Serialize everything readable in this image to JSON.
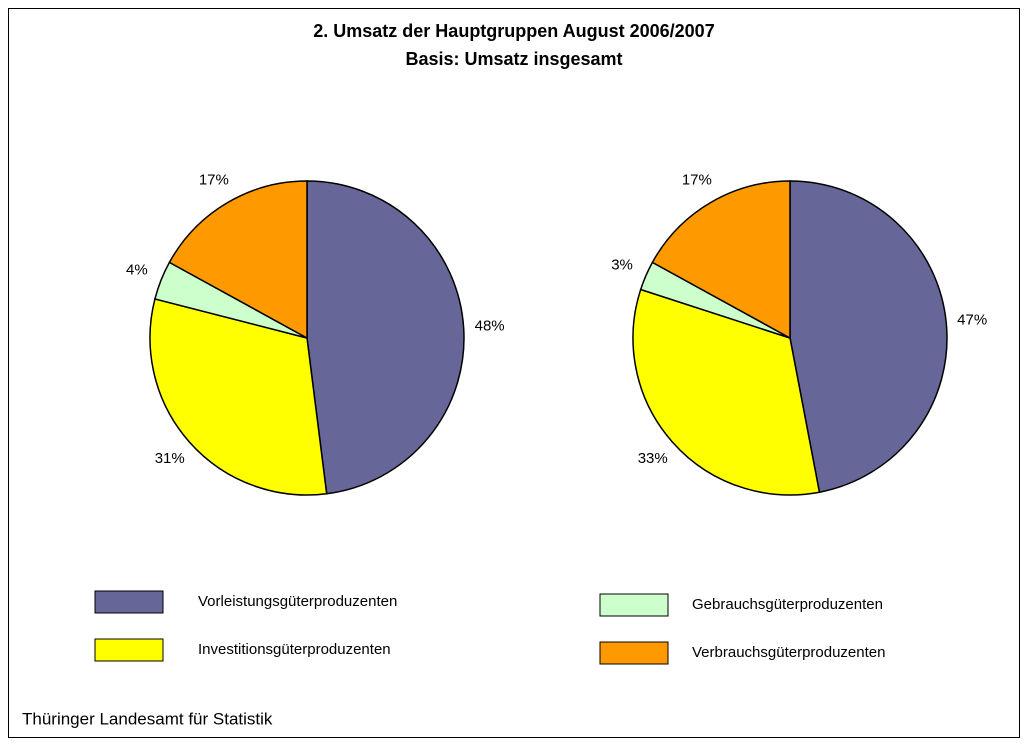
{
  "title": [
    "2. Umsatz der Hauptgruppen August 2006/2007",
    "Basis: Umsatz insgesamt"
  ],
  "categories": [
    "Vorleistungsgüterproduzenten",
    "Investitionsgüterproduzenten",
    "Gebrauchsgüterproduzenten",
    "Verbrauchsgüterproduzenten"
  ],
  "colors": [
    "#666699",
    "#ffff00",
    "#ccffcc",
    "#ff9900"
  ],
  "chart_data": [
    {
      "type": "pie",
      "values": [
        48,
        31,
        4,
        17
      ],
      "value_labels": [
        "48%",
        "31%",
        "4%",
        "17%"
      ]
    },
    {
      "type": "pie",
      "values": [
        47,
        33,
        3,
        17
      ],
      "value_labels": [
        "47%",
        "33%",
        "3%",
        "17%"
      ]
    }
  ],
  "footer": "Thüringer Landesamt für Statistik"
}
